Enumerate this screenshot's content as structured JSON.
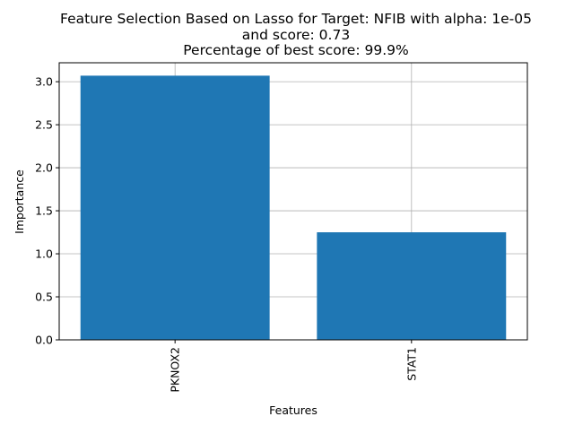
{
  "chart_data": {
    "type": "bar",
    "title_lines": [
      "Feature Selection Based on Lasso for Target: NFIB with alpha: 1e-05",
      "and score: 0.73",
      "Percentage of best score: 99.9%"
    ],
    "xlabel": "Features",
    "ylabel": "Importance",
    "categories": [
      "PKNOX2",
      "STAT1"
    ],
    "values": [
      3.07,
      1.25
    ],
    "ylim": [
      0,
      3.22
    ],
    "yticks": [
      0.0,
      0.5,
      1.0,
      1.5,
      2.0,
      2.5,
      3.0
    ],
    "ytick_labels": [
      "0.0",
      "0.5",
      "1.0",
      "1.5",
      "2.0",
      "2.5",
      "3.0"
    ],
    "grid": true,
    "bar_color": "#1f77b4",
    "grid_color": "#b0b0b0"
  }
}
